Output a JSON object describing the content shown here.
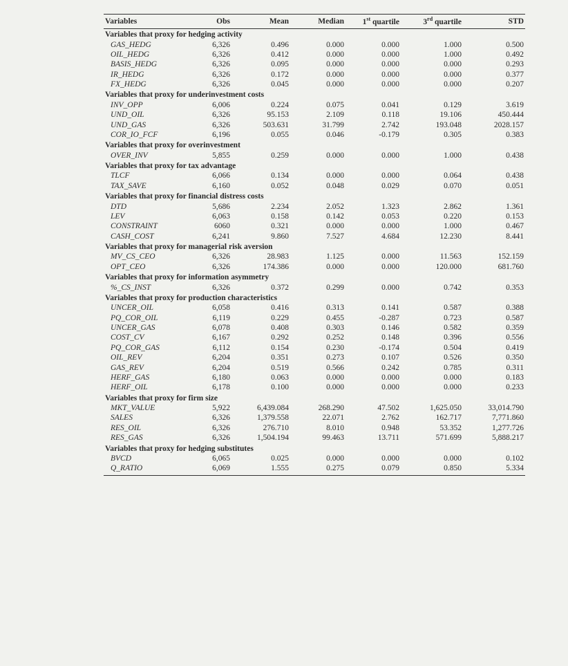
{
  "headers": {
    "var": "Variables",
    "obs": "Obs",
    "mean": "Mean",
    "median": "Median",
    "q1_pre": "1",
    "q1_sup": "st",
    "q1_post": " quartile",
    "q3_pre": "3",
    "q3_sup": "rd",
    "q3_post": " quartile",
    "std": "STD"
  },
  "sections": [
    {
      "title": "Variables that proxy for hedging activity",
      "rows": [
        {
          "name": "GAS_HEDG",
          "obs": "6,326",
          "mean": "0.496",
          "median": "0.000",
          "q1": "0.000",
          "q3": "1.000",
          "std": "0.500"
        },
        {
          "name": "OIL_HEDG",
          "obs": "6,326",
          "mean": "0.412",
          "median": "0.000",
          "q1": "0.000",
          "q3": "1.000",
          "std": "0.492"
        },
        {
          "name": "BASIS_HEDG",
          "obs": "6,326",
          "mean": "0.095",
          "median": "0.000",
          "q1": "0.000",
          "q3": "0.000",
          "std": "0.293"
        },
        {
          "name": "IR_HEDG",
          "obs": "6,326",
          "mean": "0.172",
          "median": "0.000",
          "q1": "0.000",
          "q3": "0.000",
          "std": "0.377"
        },
        {
          "name": "FX_HEDG",
          "obs": "6,326",
          "mean": "0.045",
          "median": "0.000",
          "q1": "0.000",
          "q3": "0.000",
          "std": "0.207"
        }
      ]
    },
    {
      "title": "Variables that proxy for underinvestment costs",
      "rows": [
        {
          "name": "INV_OPP",
          "obs": "6,006",
          "mean": "0.224",
          "median": "0.075",
          "q1": "0.041",
          "q3": "0.129",
          "std": "3.619"
        },
        {
          "name": "UND_OIL",
          "obs": "6,326",
          "mean": "95.153",
          "median": "2.109",
          "q1": "0.118",
          "q3": "19.106",
          "std": "450.444"
        },
        {
          "name": "UND_GAS",
          "obs": "6,326",
          "mean": "503.631",
          "median": "31.799",
          "q1": "2.742",
          "q3": "193.048",
          "std": "2028.157"
        },
        {
          "name": "COR_IO_FCF",
          "obs": "6,196",
          "mean": "0.055",
          "median": "0.046",
          "q1": "-0.179",
          "q3": "0.305",
          "std": "0.383"
        }
      ]
    },
    {
      "title": "Variables that proxy for overinvestment",
      "rows": [
        {
          "name": "OVER_INV",
          "obs": "5,855",
          "mean": "0.259",
          "median": "0.000",
          "q1": "0.000",
          "q3": "1.000",
          "std": "0.438"
        }
      ]
    },
    {
      "title": "Variables that proxy for tax advantage",
      "rows": [
        {
          "name": "TLCF",
          "obs": "6,066",
          "mean": "0.134",
          "median": "0.000",
          "q1": "0.000",
          "q3": "0.064",
          "std": "0.438"
        },
        {
          "name": "TAX_SAVE",
          "obs": "6,160",
          "mean": "0.052",
          "median": "0.048",
          "q1": "0.029",
          "q3": "0.070",
          "std": "0.051"
        }
      ]
    },
    {
      "title": "Variables that proxy for financial distress costs",
      "rows": [
        {
          "name": "DTD",
          "obs": "5,686",
          "mean": "2.234",
          "median": "2.052",
          "q1": "1.323",
          "q3": "2.862",
          "std": "1.361"
        },
        {
          "name": "LEV",
          "obs": "6,063",
          "mean": "0.158",
          "median": "0.142",
          "q1": "0.053",
          "q3": "0.220",
          "std": "0.153"
        },
        {
          "name": "CONSTRAINT",
          "obs": "6060",
          "mean": "0.321",
          "median": "0.000",
          "q1": "0.000",
          "q3": "1.000",
          "std": "0.467"
        },
        {
          "name": "CASH_COST",
          "obs": "6,241",
          "mean": "9.860",
          "median": "7.527",
          "q1": "4.684",
          "q3": "12.230",
          "std": "8.441"
        }
      ]
    },
    {
      "title": "Variables that proxy for managerial risk aversion",
      "rows": [
        {
          "name": "MV_CS_CEO",
          "obs": "6,326",
          "mean": "28.983",
          "median": "1.125",
          "q1": "0.000",
          "q3": "11.563",
          "std": "152.159"
        },
        {
          "name": "OPT_CEO",
          "obs": "6,326",
          "mean": "174.386",
          "median": "0.000",
          "q1": "0.000",
          "q3": "120.000",
          "std": "681.760"
        }
      ]
    },
    {
      "title": "Variables that proxy for information asymmetry",
      "rows": [
        {
          "name": "%_CS_INST",
          "obs": "6,326",
          "mean": "0.372",
          "median": "0.299",
          "q1": "0.000",
          "q3": "0.742",
          "std": "0.353"
        }
      ]
    },
    {
      "title": "Variables that proxy for production characteristics",
      "rows": [
        {
          "name": "UNCER_OIL",
          "obs": "6,058",
          "mean": "0.416",
          "median": "0.313",
          "q1": "0.141",
          "q3": "0.587",
          "std": "0.388"
        },
        {
          "name": "PQ_COR_OIL",
          "obs": "6,119",
          "mean": "0.229",
          "median": "0.455",
          "q1": "-0.287",
          "q3": "0.723",
          "std": "0.587"
        },
        {
          "name": "UNCER_GAS",
          "obs": "6,078",
          "mean": "0.408",
          "median": "0.303",
          "q1": "0.146",
          "q3": "0.582",
          "std": "0.359"
        },
        {
          "name": "COST_CV",
          "obs": "6,167",
          "mean": "0.292",
          "median": "0.252",
          "q1": "0.148",
          "q3": "0.396",
          "std": "0.556"
        },
        {
          "name": "PQ_COR_GAS",
          "obs": "6,112",
          "mean": "0.154",
          "median": "0.230",
          "q1": "-0.174",
          "q3": "0.504",
          "std": "0.419"
        },
        {
          "name": "OIL_REV",
          "obs": "6,204",
          "mean": "0.351",
          "median": "0.273",
          "q1": "0.107",
          "q3": "0.526",
          "std": "0.350"
        },
        {
          "name": "GAS_REV",
          "obs": "6,204",
          "mean": "0.519",
          "median": "0.566",
          "q1": "0.242",
          "q3": "0.785",
          "std": "0.311"
        },
        {
          "name": "HERF_GAS",
          "obs": "6,180",
          "mean": "0.063",
          "median": "0.000",
          "q1": "0.000",
          "q3": "0.000",
          "std": "0.183"
        },
        {
          "name": "HERF_OIL",
          "obs": "6,178",
          "mean": "0.100",
          "median": "0.000",
          "q1": "0.000",
          "q3": "0.000",
          "std": "0.233"
        }
      ]
    },
    {
      "title": "Variables that proxy for firm size",
      "rows": [
        {
          "name": "MKT_VALUE",
          "obs": "5,922",
          "mean": "6,439.084",
          "median": "268.290",
          "q1": "47.502",
          "q3": "1,625.050",
          "std": "33,014.790"
        },
        {
          "name": "SALES",
          "obs": "6,326",
          "mean": "1,379.558",
          "median": "22.071",
          "q1": "2.762",
          "q3": "162.717",
          "std": "7,771.860"
        },
        {
          "name": "RES_OIL",
          "obs": "6,326",
          "mean": "276.710",
          "median": "8.010",
          "q1": "0.948",
          "q3": "53.352",
          "std": "1,277.726"
        },
        {
          "name": "RES_GAS",
          "obs": "6,326",
          "mean": "1,504.194",
          "median": "99.463",
          "q1": "13.711",
          "q3": "571.699",
          "std": "5,888.217"
        }
      ]
    },
    {
      "title": "Variables that proxy for hedging substitutes",
      "rows": [
        {
          "name": "BVCD",
          "obs": "6,065",
          "mean": "0.025",
          "median": "0.000",
          "q1": "0.000",
          "q3": "0.000",
          "std": "0.102"
        },
        {
          "name": "Q_RATIO",
          "obs": "6,069",
          "mean": "1.555",
          "median": "0.275",
          "q1": "0.079",
          "q3": "0.850",
          "std": "5.334"
        }
      ]
    }
  ]
}
